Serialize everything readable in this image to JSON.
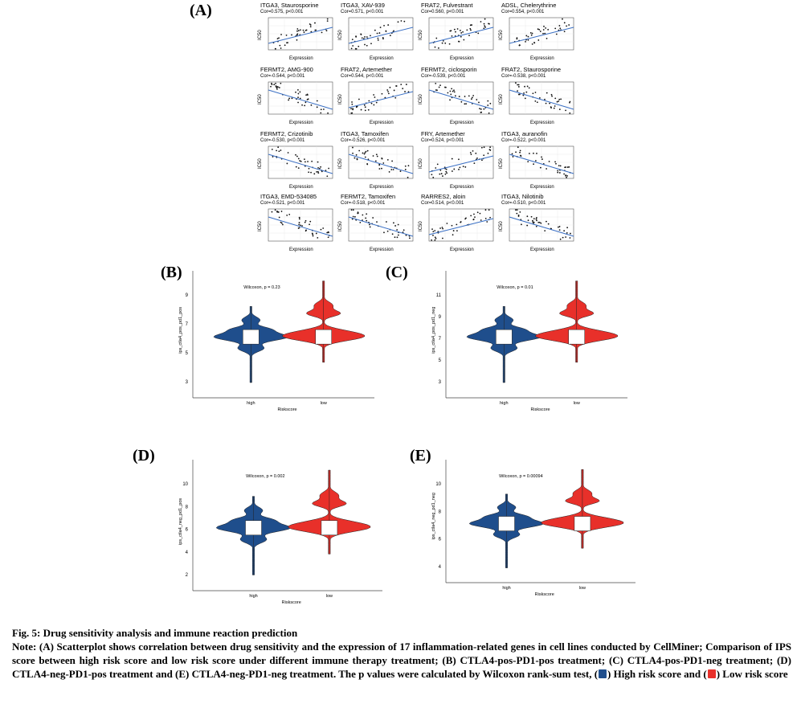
{
  "colors": {
    "high": "#1f4e8c",
    "low": "#e8302a",
    "fit": "#3a6fc4"
  },
  "panels": {
    "A": "(A)",
    "B": "(B)",
    "C": "(C)",
    "D": "(D)",
    "E": "(E)"
  },
  "scatter": {
    "ylabel": "IC50",
    "xlabel": "Expression",
    "plots": [
      {
        "title": "ITGA3, Staurosporine",
        "stat": "Cor=0.575, p<0.001",
        "slope": 1
      },
      {
        "title": "ITGA3, XAV-939",
        "stat": "Cor=0.571, p<0.001",
        "slope": 1
      },
      {
        "title": "FRAT2, Fulvestrant",
        "stat": "Cor=0.560, p<0.001",
        "slope": 1
      },
      {
        "title": "ADSL, Chelerythrine",
        "stat": "Cor=0.554, p<0.001",
        "slope": 1
      },
      {
        "title": "FERMT2, AMG-900",
        "stat": "Cor=-0.544, p<0.001",
        "slope": -1
      },
      {
        "title": "FRAT2, Artemether",
        "stat": "Cor=0.544, p<0.001",
        "slope": 1
      },
      {
        "title": "FERMT2, ciclosporin",
        "stat": "Cor=-0.539, p<0.001",
        "slope": -1
      },
      {
        "title": "FRAT2, Staurosporine",
        "stat": "Cor=-0.538, p<0.001",
        "slope": -1
      },
      {
        "title": "FERMT2, Crizotinib",
        "stat": "Cor=-0.530, p<0.001",
        "slope": -1
      },
      {
        "title": "ITGA3, Tamoxifen",
        "stat": "Cor=-0.526, p<0.001",
        "slope": -1
      },
      {
        "title": "FRY, Artemether",
        "stat": "Cor=0.524, p<0.001",
        "slope": 1
      },
      {
        "title": "ITGA3, auranofin",
        "stat": "Cor=-0.522, p<0.001",
        "slope": -1
      },
      {
        "title": "ITGA3, EMD-534085",
        "stat": "Cor=-0.521, p<0.001",
        "slope": -1
      },
      {
        "title": "FERMT2, Tamoxifen",
        "stat": "Cor=-0.518, p<0.001",
        "slope": -1
      },
      {
        "title": "RARRES2, aloin",
        "stat": "Cor=0.514, p<0.001",
        "slope": 1
      },
      {
        "title": "ITGA3, Nilotinib",
        "stat": "Cor=-0.510, p<0.001",
        "slope": -1
      }
    ]
  },
  "violins": {
    "xlabel": "Riskscore",
    "groups": [
      "high",
      "low"
    ],
    "plots": [
      {
        "id": "B",
        "ylabel": "ips_ctla4_pos_pd1_pos",
        "pvalue": "Wilcoxon, p = 0.23",
        "yticks": [
          "9",
          "7",
          "5",
          "3"
        ],
        "median_high": 5.5,
        "median_low": 5.6
      },
      {
        "id": "C",
        "ylabel": "ips_ctla4_pos_pd1_neg",
        "pvalue": "Wilcoxon, p = 0.01",
        "yticks": [
          "11",
          "9",
          "7",
          "5",
          "3"
        ],
        "median_high": 6.5,
        "median_low": 6.6
      },
      {
        "id": "D",
        "ylabel": "ips_ctla4_neg_pd1_pos",
        "pvalue": "Wilcoxon, p = 0.002",
        "yticks": [
          "10",
          "8",
          "6",
          "4",
          "2"
        ],
        "median_high": 6.3,
        "median_low": 6.4
      },
      {
        "id": "E",
        "ylabel": "ips_ctla4_neg_pd1_neg",
        "pvalue": "Wilcoxon, p = 0.00094",
        "yticks": [
          "10",
          "8",
          "6",
          "4"
        ],
        "median_high": 7.5,
        "median_low": 7.5
      }
    ]
  },
  "caption": {
    "title": "Fig. 5: Drug sensitivity analysis and immune reaction prediction",
    "body_a": "Note: (A) Scatterplot shows correlation between drug sensitivity and the expression of 17 inflammation-related genes in cell lines conducted by CellMiner; Comparison of IPS score between high risk score and low risk score under different immune therapy treatment; (B) CTLA4-pos-PD1-pos treatment; (C) CTLA4-pos-PD1-neg treatment; (D) CTLA4-neg-PD1-pos treatment and (E) CTLA4-neg-PD1-neg treatment. The p values were calculated by Wilcoxon rank-sum test, (",
    "high_label": ") High risk score and (",
    "low_label": ") Low risk score"
  }
}
